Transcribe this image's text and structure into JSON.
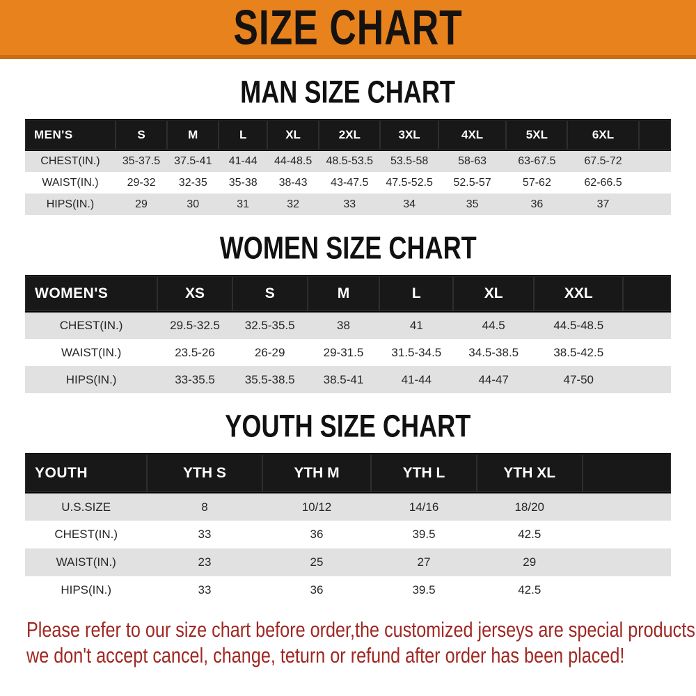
{
  "banner": {
    "title": "SIZE CHART",
    "bg_color": "#e8821d"
  },
  "sections": [
    {
      "title": "MAN SIZE CHART",
      "header_label": "MEN'S",
      "columns": [
        "S",
        "M",
        "L",
        "XL",
        "2XL",
        "3XL",
        "4XL",
        "5XL",
        "6XL"
      ],
      "rows": [
        {
          "label": "CHEST(IN.)",
          "values": [
            "35-37.5",
            "37.5-41",
            "41-44",
            "44-48.5",
            "48.5-53.5",
            "53.5-58",
            "58-63",
            "63-67.5",
            "67.5-72"
          ]
        },
        {
          "label": "WAIST(IN.)",
          "values": [
            "29-32",
            "32-35",
            "35-38",
            "38-43",
            "43-47.5",
            "47.5-52.5",
            "52.5-57",
            "57-62",
            "62-66.5"
          ]
        },
        {
          "label": "HIPS(IN.)",
          "values": [
            "29",
            "30",
            "31",
            "32",
            "33",
            "34",
            "35",
            "36",
            "37"
          ]
        }
      ]
    },
    {
      "title": "WOMEN SIZE CHART",
      "header_label": "WOMEN'S",
      "columns": [
        "XS",
        "S",
        "M",
        "L",
        "XL",
        "XXL"
      ],
      "rows": [
        {
          "label": "CHEST(IN.)",
          "values": [
            "29.5-32.5",
            "32.5-35.5",
            "38",
            "41",
            "44.5",
            "44.5-48.5"
          ]
        },
        {
          "label": "WAIST(IN.)",
          "values": [
            "23.5-26",
            "26-29",
            "29-31.5",
            "31.5-34.5",
            "34.5-38.5",
            "38.5-42.5"
          ]
        },
        {
          "label": "HIPS(IN.)",
          "values": [
            "33-35.5",
            "35.5-38.5",
            "38.5-41",
            "41-44",
            "44-47",
            "47-50"
          ]
        }
      ]
    },
    {
      "title": "YOUTH SIZE CHART",
      "header_label": "YOUTH",
      "columns": [
        "YTH S",
        "YTH M",
        "YTH L",
        "YTH XL"
      ],
      "rows": [
        {
          "label": "U.S.SIZE",
          "values": [
            "8",
            "10/12",
            "14/16",
            "18/20"
          ]
        },
        {
          "label": "CHEST(IN.)",
          "values": [
            "33",
            "36",
            "39.5",
            "42.5"
          ]
        },
        {
          "label": "WAIST(IN.)",
          "values": [
            "23",
            "25",
            "27",
            "29"
          ]
        },
        {
          "label": "HIPS(IN.)",
          "values": [
            "33",
            "36",
            "39.5",
            "42.5"
          ]
        }
      ]
    }
  ],
  "disclaimer": {
    "line1": "Please refer to our size chart before order,the customized jerseys are special products,",
    "line2": "we don't accept cancel, change, teturn or refund after order has been placed!",
    "color": "#a02722"
  }
}
